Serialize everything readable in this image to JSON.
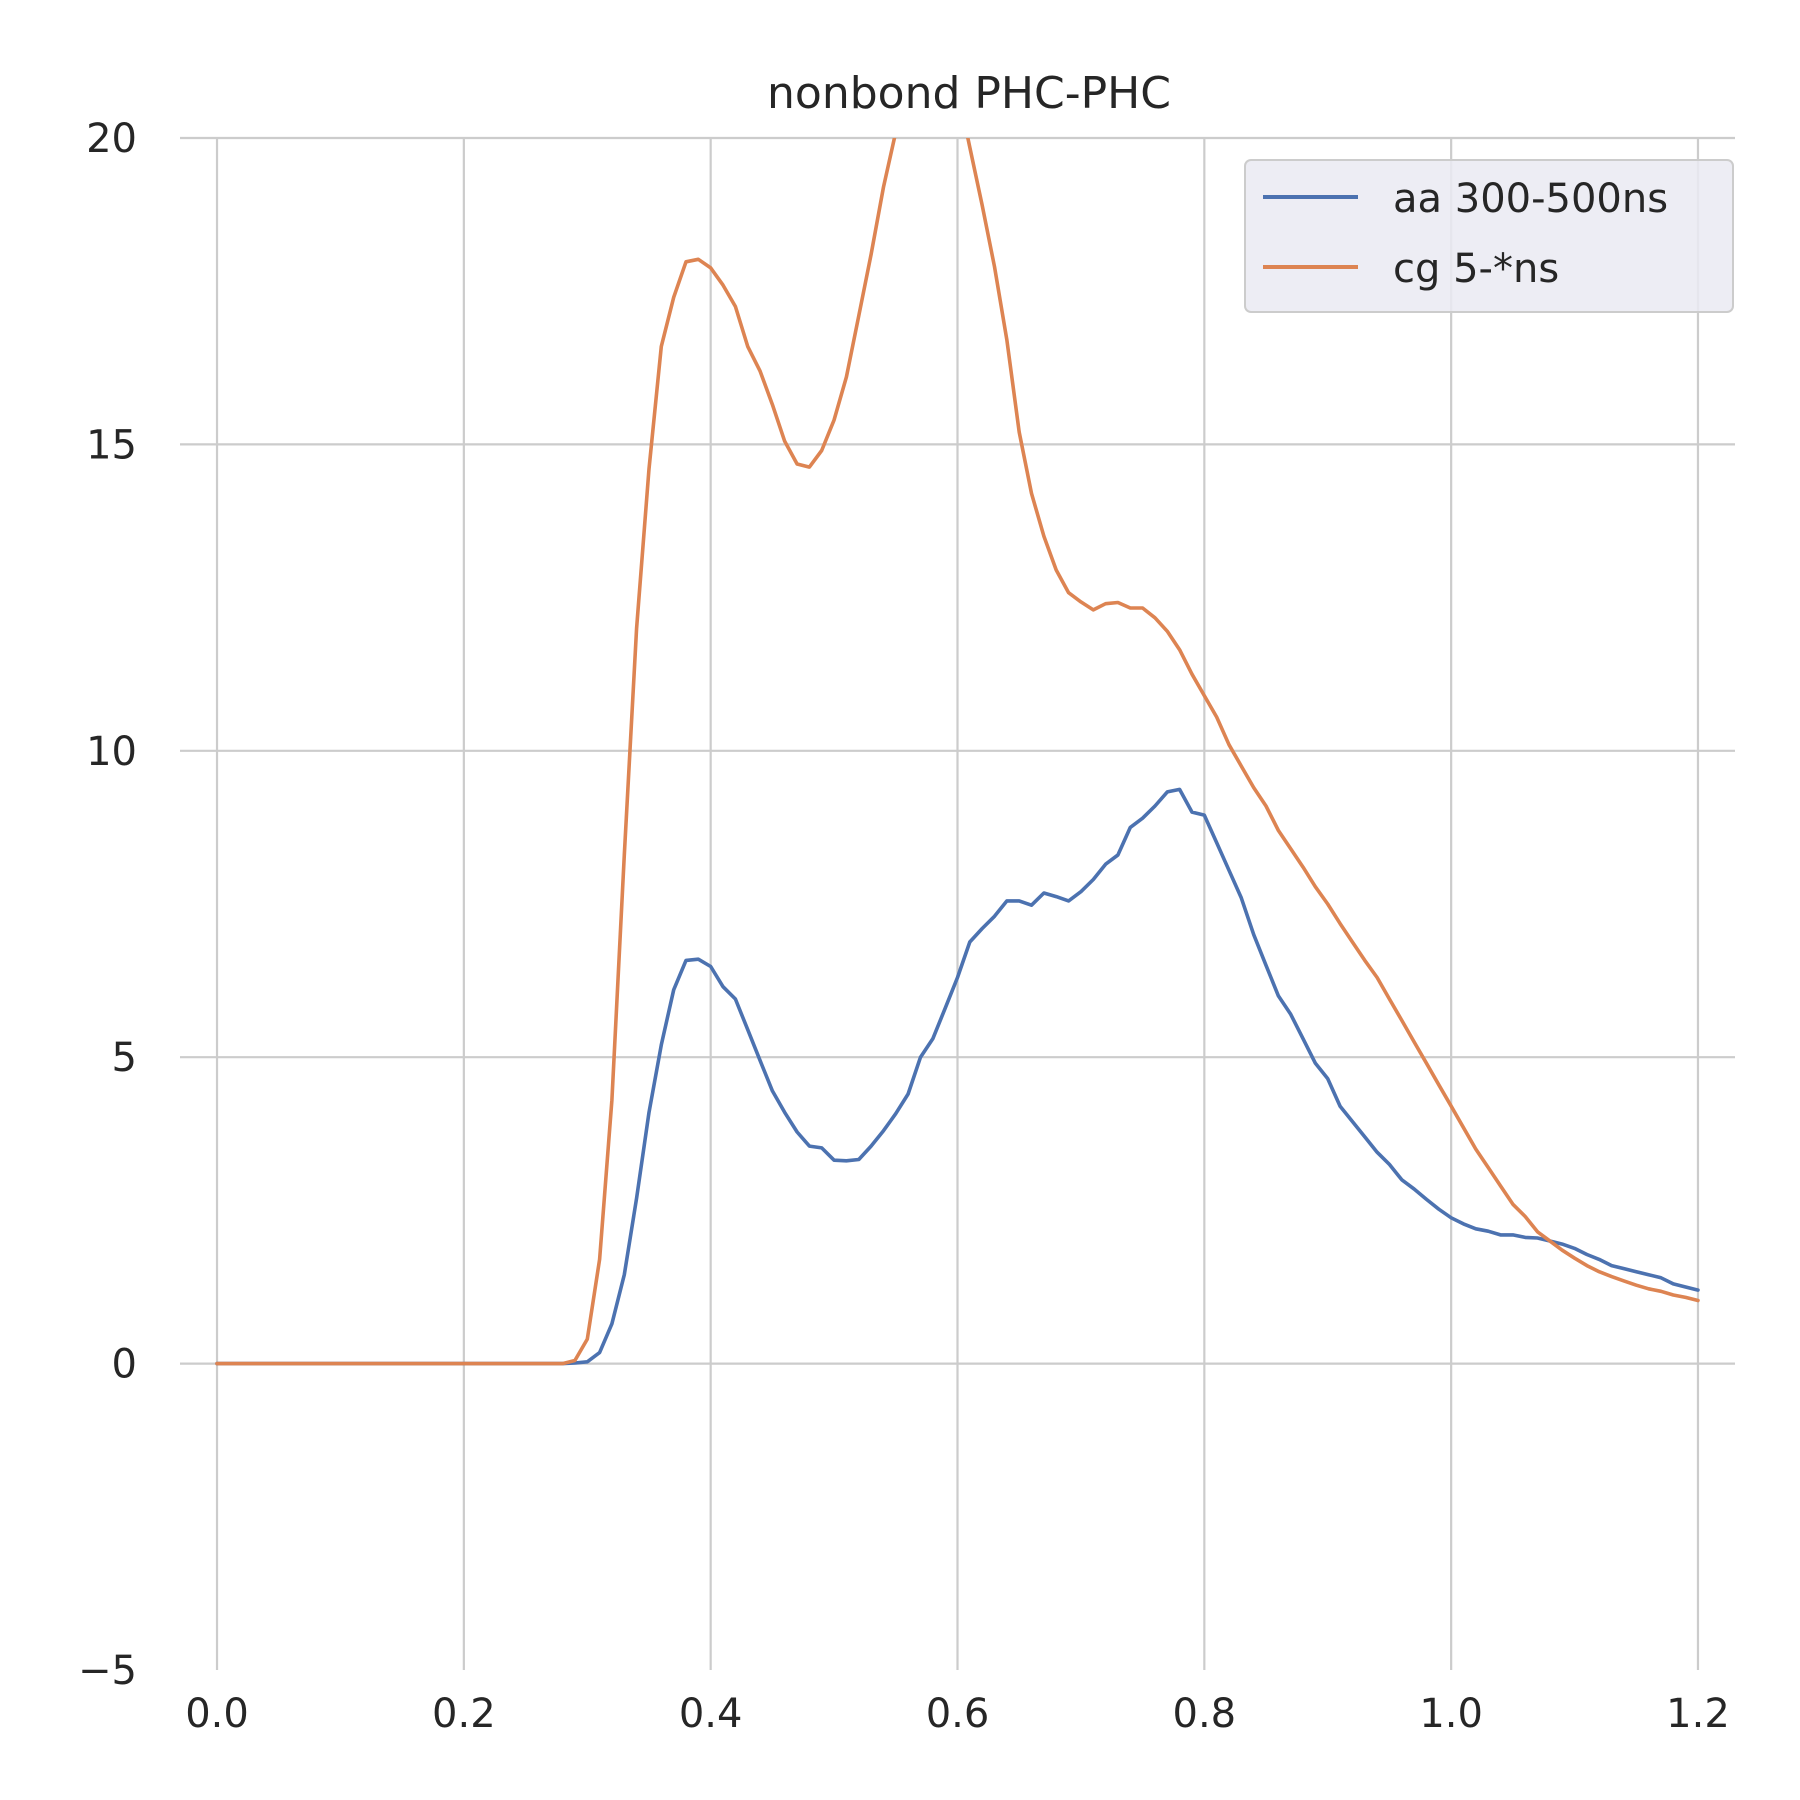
{
  "chart_data": {
    "type": "line",
    "title": "nonbond PHC-PHC",
    "xlabel": "",
    "ylabel": "",
    "xlim": [
      -0.03,
      1.23
    ],
    "ylim": [
      -5,
      20
    ],
    "x_ticks": [
      0.0,
      0.2,
      0.4,
      0.6,
      0.8,
      1.0,
      1.2
    ],
    "x_tick_labels": [
      "0.0",
      "0.2",
      "0.4",
      "0.6",
      "0.8",
      "1.0",
      "1.2"
    ],
    "y_ticks": [
      -5,
      0,
      5,
      10,
      15,
      20
    ],
    "y_tick_labels": [
      "−5",
      "0",
      "5",
      "10",
      "15",
      "20"
    ],
    "grid": true,
    "legend_position": "top-right",
    "series": [
      {
        "name": "aa 300-500ns",
        "color": "#4c72b0",
        "points": [
          [
            0.0,
            0
          ],
          [
            0.1,
            0
          ],
          [
            0.2,
            0
          ],
          [
            0.28,
            0
          ],
          [
            0.29,
            0.01
          ],
          [
            0.3,
            0.03
          ],
          [
            0.31,
            0.18
          ],
          [
            0.32,
            0.65
          ],
          [
            0.33,
            1.45
          ],
          [
            0.34,
            2.7
          ],
          [
            0.35,
            4.1
          ],
          [
            0.36,
            5.2
          ],
          [
            0.37,
            6.1
          ],
          [
            0.38,
            6.58
          ],
          [
            0.39,
            6.6
          ],
          [
            0.4,
            6.48
          ],
          [
            0.41,
            6.15
          ],
          [
            0.42,
            5.95
          ],
          [
            0.43,
            5.45
          ],
          [
            0.44,
            4.95
          ],
          [
            0.45,
            4.45
          ],
          [
            0.46,
            4.1
          ],
          [
            0.47,
            3.78
          ],
          [
            0.48,
            3.55
          ],
          [
            0.49,
            3.52
          ],
          [
            0.5,
            3.32
          ],
          [
            0.51,
            3.31
          ],
          [
            0.52,
            3.33
          ],
          [
            0.53,
            3.55
          ],
          [
            0.54,
            3.8
          ],
          [
            0.55,
            4.08
          ],
          [
            0.56,
            4.4
          ],
          [
            0.57,
            5.0
          ],
          [
            0.58,
            5.3
          ],
          [
            0.59,
            5.8
          ],
          [
            0.6,
            6.3
          ],
          [
            0.61,
            6.88
          ],
          [
            0.62,
            7.1
          ],
          [
            0.63,
            7.3
          ],
          [
            0.64,
            7.55
          ],
          [
            0.65,
            7.55
          ],
          [
            0.66,
            7.48
          ],
          [
            0.67,
            7.68
          ],
          [
            0.68,
            7.62
          ],
          [
            0.69,
            7.55
          ],
          [
            0.7,
            7.7
          ],
          [
            0.71,
            7.9
          ],
          [
            0.72,
            8.15
          ],
          [
            0.73,
            8.3
          ],
          [
            0.74,
            8.75
          ],
          [
            0.75,
            8.9
          ],
          [
            0.76,
            9.1
          ],
          [
            0.77,
            9.33
          ],
          [
            0.78,
            9.37
          ],
          [
            0.79,
            9.0
          ],
          [
            0.8,
            8.95
          ],
          [
            0.81,
            8.5
          ],
          [
            0.82,
            8.05
          ],
          [
            0.83,
            7.6
          ],
          [
            0.84,
            7.0
          ],
          [
            0.85,
            6.5
          ],
          [
            0.86,
            6.0
          ],
          [
            0.87,
            5.7
          ],
          [
            0.88,
            5.3
          ],
          [
            0.89,
            4.9
          ],
          [
            0.9,
            4.65
          ],
          [
            0.91,
            4.2
          ],
          [
            0.92,
            3.95
          ],
          [
            0.93,
            3.7
          ],
          [
            0.94,
            3.45
          ],
          [
            0.95,
            3.25
          ],
          [
            0.96,
            3.0
          ],
          [
            0.97,
            2.85
          ],
          [
            0.98,
            2.68
          ],
          [
            0.99,
            2.52
          ],
          [
            1.0,
            2.38
          ],
          [
            1.01,
            2.28
          ],
          [
            1.02,
            2.2
          ],
          [
            1.03,
            2.16
          ],
          [
            1.04,
            2.1
          ],
          [
            1.05,
            2.1
          ],
          [
            1.06,
            2.06
          ],
          [
            1.07,
            2.05
          ],
          [
            1.08,
            2.0
          ],
          [
            1.09,
            1.95
          ],
          [
            1.1,
            1.88
          ],
          [
            1.11,
            1.78
          ],
          [
            1.12,
            1.7
          ],
          [
            1.13,
            1.6
          ],
          [
            1.14,
            1.55
          ],
          [
            1.15,
            1.5
          ],
          [
            1.16,
            1.45
          ],
          [
            1.17,
            1.4
          ],
          [
            1.18,
            1.3
          ],
          [
            1.19,
            1.25
          ],
          [
            1.2,
            1.2
          ]
        ]
      },
      {
        "name": "cg 5-*ns",
        "color": "#dd8452",
        "points": [
          [
            0.0,
            0
          ],
          [
            0.1,
            0
          ],
          [
            0.2,
            0
          ],
          [
            0.28,
            0
          ],
          [
            0.29,
            0.05
          ],
          [
            0.3,
            0.4
          ],
          [
            0.31,
            1.7
          ],
          [
            0.32,
            4.3
          ],
          [
            0.33,
            8.3
          ],
          [
            0.34,
            12.0
          ],
          [
            0.35,
            14.6
          ],
          [
            0.36,
            16.6
          ],
          [
            0.37,
            17.4
          ],
          [
            0.38,
            17.98
          ],
          [
            0.39,
            18.02
          ],
          [
            0.4,
            17.88
          ],
          [
            0.41,
            17.6
          ],
          [
            0.42,
            17.25
          ],
          [
            0.43,
            16.6
          ],
          [
            0.44,
            16.2
          ],
          [
            0.45,
            15.65
          ],
          [
            0.46,
            15.05
          ],
          [
            0.47,
            14.68
          ],
          [
            0.48,
            14.63
          ],
          [
            0.49,
            14.9
          ],
          [
            0.5,
            15.4
          ],
          [
            0.51,
            16.1
          ],
          [
            0.52,
            17.1
          ],
          [
            0.53,
            18.1
          ],
          [
            0.54,
            19.2
          ],
          [
            0.55,
            20.1
          ],
          [
            0.56,
            21.0
          ],
          [
            0.57,
            21.6
          ],
          [
            0.58,
            21.8
          ],
          [
            0.59,
            21.5
          ],
          [
            0.6,
            20.8
          ],
          [
            0.61,
            19.85
          ],
          [
            0.62,
            18.9
          ],
          [
            0.63,
            17.9
          ],
          [
            0.64,
            16.7
          ],
          [
            0.65,
            15.2
          ],
          [
            0.66,
            14.2
          ],
          [
            0.67,
            13.5
          ],
          [
            0.68,
            12.95
          ],
          [
            0.69,
            12.58
          ],
          [
            0.7,
            12.43
          ],
          [
            0.71,
            12.3
          ],
          [
            0.72,
            12.4
          ],
          [
            0.73,
            12.42
          ],
          [
            0.74,
            12.33
          ],
          [
            0.75,
            12.33
          ],
          [
            0.76,
            12.17
          ],
          [
            0.77,
            11.95
          ],
          [
            0.78,
            11.65
          ],
          [
            0.79,
            11.25
          ],
          [
            0.8,
            10.9
          ],
          [
            0.81,
            10.55
          ],
          [
            0.82,
            10.1
          ],
          [
            0.83,
            9.75
          ],
          [
            0.84,
            9.4
          ],
          [
            0.85,
            9.1
          ],
          [
            0.86,
            8.7
          ],
          [
            0.87,
            8.4
          ],
          [
            0.88,
            8.1
          ],
          [
            0.89,
            7.78
          ],
          [
            0.9,
            7.5
          ],
          [
            0.91,
            7.18
          ],
          [
            0.92,
            6.88
          ],
          [
            0.93,
            6.58
          ],
          [
            0.94,
            6.3
          ],
          [
            0.95,
            5.95
          ],
          [
            0.96,
            5.6
          ],
          [
            0.97,
            5.25
          ],
          [
            0.98,
            4.9
          ],
          [
            0.99,
            4.55
          ],
          [
            1.0,
            4.2
          ],
          [
            1.01,
            3.85
          ],
          [
            1.02,
            3.5
          ],
          [
            1.03,
            3.2
          ],
          [
            1.04,
            2.9
          ],
          [
            1.05,
            2.6
          ],
          [
            1.06,
            2.4
          ],
          [
            1.07,
            2.15
          ],
          [
            1.08,
            2.0
          ],
          [
            1.09,
            1.85
          ],
          [
            1.1,
            1.72
          ],
          [
            1.11,
            1.6
          ],
          [
            1.12,
            1.5
          ],
          [
            1.13,
            1.42
          ],
          [
            1.14,
            1.35
          ],
          [
            1.15,
            1.28
          ],
          [
            1.16,
            1.22
          ],
          [
            1.17,
            1.18
          ],
          [
            1.18,
            1.12
          ],
          [
            1.19,
            1.08
          ],
          [
            1.2,
            1.03
          ]
        ]
      }
    ]
  }
}
